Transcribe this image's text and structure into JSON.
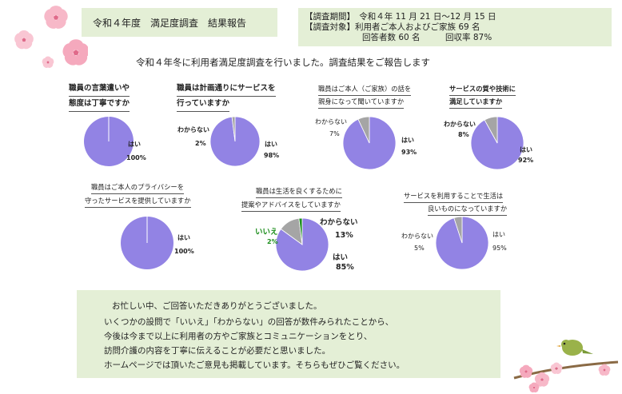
{
  "header": {
    "title": "令和４年度　満足度調査　結果報告",
    "period_line": "【調査期間】　令和４年 11 月 21 日～12 月 15 日",
    "target_line": "【調査対象】利用者ご本人およびご家族 69 名",
    "response_line": "回答者数 60 名　　　回収率 87%"
  },
  "intro": "令和４年冬に利用者満足度調査を行いました。調査結果をご報告します",
  "colors": {
    "yes": "#9283e4",
    "unknown": "#a5a5a5",
    "no": "#1e8f1e",
    "box": "#e4efd6"
  },
  "chart_data": [
    {
      "type": "pie",
      "title_lines": [
        "職員の言葉遣いや",
        "態度は丁寧ですか"
      ],
      "slices": [
        {
          "label": "はい",
          "value": 100,
          "display": "100%"
        }
      ]
    },
    {
      "type": "pie",
      "title_lines": [
        "職員は計画通りにサービスを",
        "行っていますか"
      ],
      "slices": [
        {
          "label": "はい",
          "value": 98,
          "display": "98%"
        },
        {
          "label": "わからない",
          "value": 2,
          "display": "2%"
        }
      ]
    },
    {
      "type": "pie",
      "title_lines": [
        "職員はご本人（ご家族）の話を",
        "親身になって聞いていますか"
      ],
      "slices": [
        {
          "label": "はい",
          "value": 93,
          "display": "93%"
        },
        {
          "label": "わからない",
          "value": 7,
          "display": "7%"
        }
      ]
    },
    {
      "type": "pie",
      "title_lines": [
        "サービスの質や技術に",
        "満足していますか"
      ],
      "slices": [
        {
          "label": "はい",
          "value": 92,
          "display": "92%"
        },
        {
          "label": "わからない",
          "value": 8,
          "display": "8%"
        }
      ]
    },
    {
      "type": "pie",
      "title_lines": [
        "職員はご本人のプライバシーを",
        "守ったサービスを提供していますか"
      ],
      "slices": [
        {
          "label": "はい",
          "value": 100,
          "display": "100%"
        }
      ]
    },
    {
      "type": "pie",
      "title_lines": [
        "職員は生活を良くするために",
        "提案やアドバイスをしていますか"
      ],
      "slices": [
        {
          "label": "はい",
          "value": 85,
          "display": "85%"
        },
        {
          "label": "わからない",
          "value": 13,
          "display": "13%"
        },
        {
          "label": "いいえ",
          "value": 2,
          "display": "2%"
        }
      ]
    },
    {
      "type": "pie",
      "title_lines": [
        "サービスを利用することで生活は",
        "良いものになっていますか"
      ],
      "slices": [
        {
          "label": "はい",
          "value": 95,
          "display": "95%"
        },
        {
          "label": "わからない",
          "value": 5,
          "display": "5%"
        }
      ]
    }
  ],
  "message": [
    "お忙しい中、ご回答いただきありがとうございました。",
    "いくつかの設問で「いいえ」「わからない」の回答が数件みられたことから、",
    "今後は今まで以上に利用者の方やご家族とコミュニケーションをとり、",
    "訪問介護の内容を丁寧に伝えることが必要だと思いました。",
    "ホームページでは頂いたご意見も掲載しています。そちらもぜひご覧ください。"
  ]
}
